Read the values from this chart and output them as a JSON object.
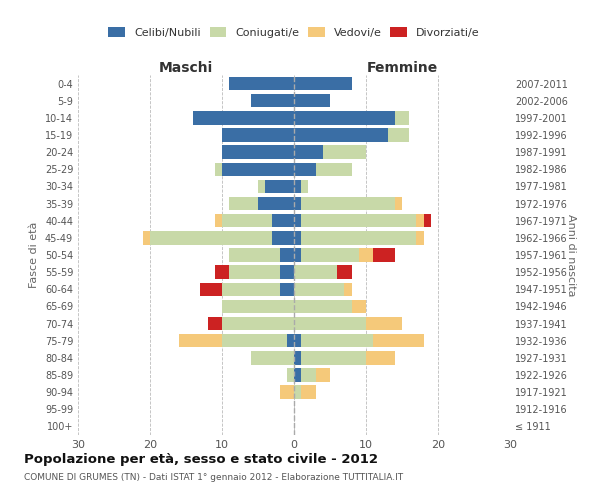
{
  "age_groups": [
    "100+",
    "95-99",
    "90-94",
    "85-89",
    "80-84",
    "75-79",
    "70-74",
    "65-69",
    "60-64",
    "55-59",
    "50-54",
    "45-49",
    "40-44",
    "35-39",
    "30-34",
    "25-29",
    "20-24",
    "15-19",
    "10-14",
    "5-9",
    "0-4"
  ],
  "birth_years": [
    "≤ 1911",
    "1912-1916",
    "1917-1921",
    "1922-1926",
    "1927-1931",
    "1932-1936",
    "1937-1941",
    "1942-1946",
    "1947-1951",
    "1952-1956",
    "1957-1961",
    "1962-1966",
    "1967-1971",
    "1972-1976",
    "1977-1981",
    "1982-1986",
    "1987-1991",
    "1992-1996",
    "1997-2001",
    "2002-2006",
    "2007-2011"
  ],
  "maschi": {
    "celibe": [
      0,
      0,
      0,
      0,
      0,
      1,
      0,
      0,
      2,
      2,
      2,
      3,
      3,
      5,
      4,
      10,
      10,
      10,
      14,
      6,
      9
    ],
    "coniugato": [
      0,
      0,
      0,
      1,
      6,
      9,
      10,
      10,
      8,
      7,
      7,
      17,
      7,
      4,
      1,
      1,
      0,
      0,
      0,
      0,
      0
    ],
    "vedovo": [
      0,
      0,
      2,
      0,
      0,
      6,
      0,
      0,
      0,
      0,
      0,
      1,
      1,
      0,
      0,
      0,
      0,
      0,
      0,
      0,
      0
    ],
    "divorziato": [
      0,
      0,
      0,
      0,
      0,
      0,
      2,
      0,
      3,
      2,
      0,
      0,
      0,
      0,
      0,
      0,
      0,
      0,
      0,
      0,
      0
    ]
  },
  "femmine": {
    "nubile": [
      0,
      0,
      0,
      1,
      1,
      1,
      0,
      0,
      0,
      0,
      1,
      1,
      1,
      1,
      1,
      3,
      4,
      13,
      14,
      5,
      8
    ],
    "coniugata": [
      0,
      0,
      1,
      2,
      9,
      10,
      10,
      8,
      7,
      6,
      8,
      16,
      16,
      13,
      1,
      5,
      6,
      3,
      2,
      0,
      0
    ],
    "vedova": [
      0,
      0,
      2,
      2,
      4,
      7,
      5,
      2,
      1,
      0,
      2,
      1,
      1,
      1,
      0,
      0,
      0,
      0,
      0,
      0,
      0
    ],
    "divorziata": [
      0,
      0,
      0,
      0,
      0,
      0,
      0,
      0,
      0,
      2,
      3,
      0,
      1,
      0,
      0,
      0,
      0,
      0,
      0,
      0,
      0
    ]
  },
  "colors": {
    "celibe": "#3a6ea5",
    "coniugato": "#c8d9a8",
    "vedovo": "#f5c97a",
    "divorziato": "#cc2222"
  },
  "xlim": 30,
  "title": "Popolazione per età, sesso e stato civile - 2012",
  "subtitle": "COMUNE DI GRUMES (TN) - Dati ISTAT 1° gennaio 2012 - Elaborazione TUTTITALIA.IT",
  "ylabel_left": "Fasce di età",
  "ylabel_right": "Anni di nascita",
  "xlabel_maschi": "Maschi",
  "xlabel_femmine": "Femmine",
  "legend_labels": [
    "Celibi/Nubili",
    "Coniugati/e",
    "Vedovi/e",
    "Divorziati/e"
  ],
  "background_color": "#ffffff",
  "grid_color": "#bbbbbb"
}
